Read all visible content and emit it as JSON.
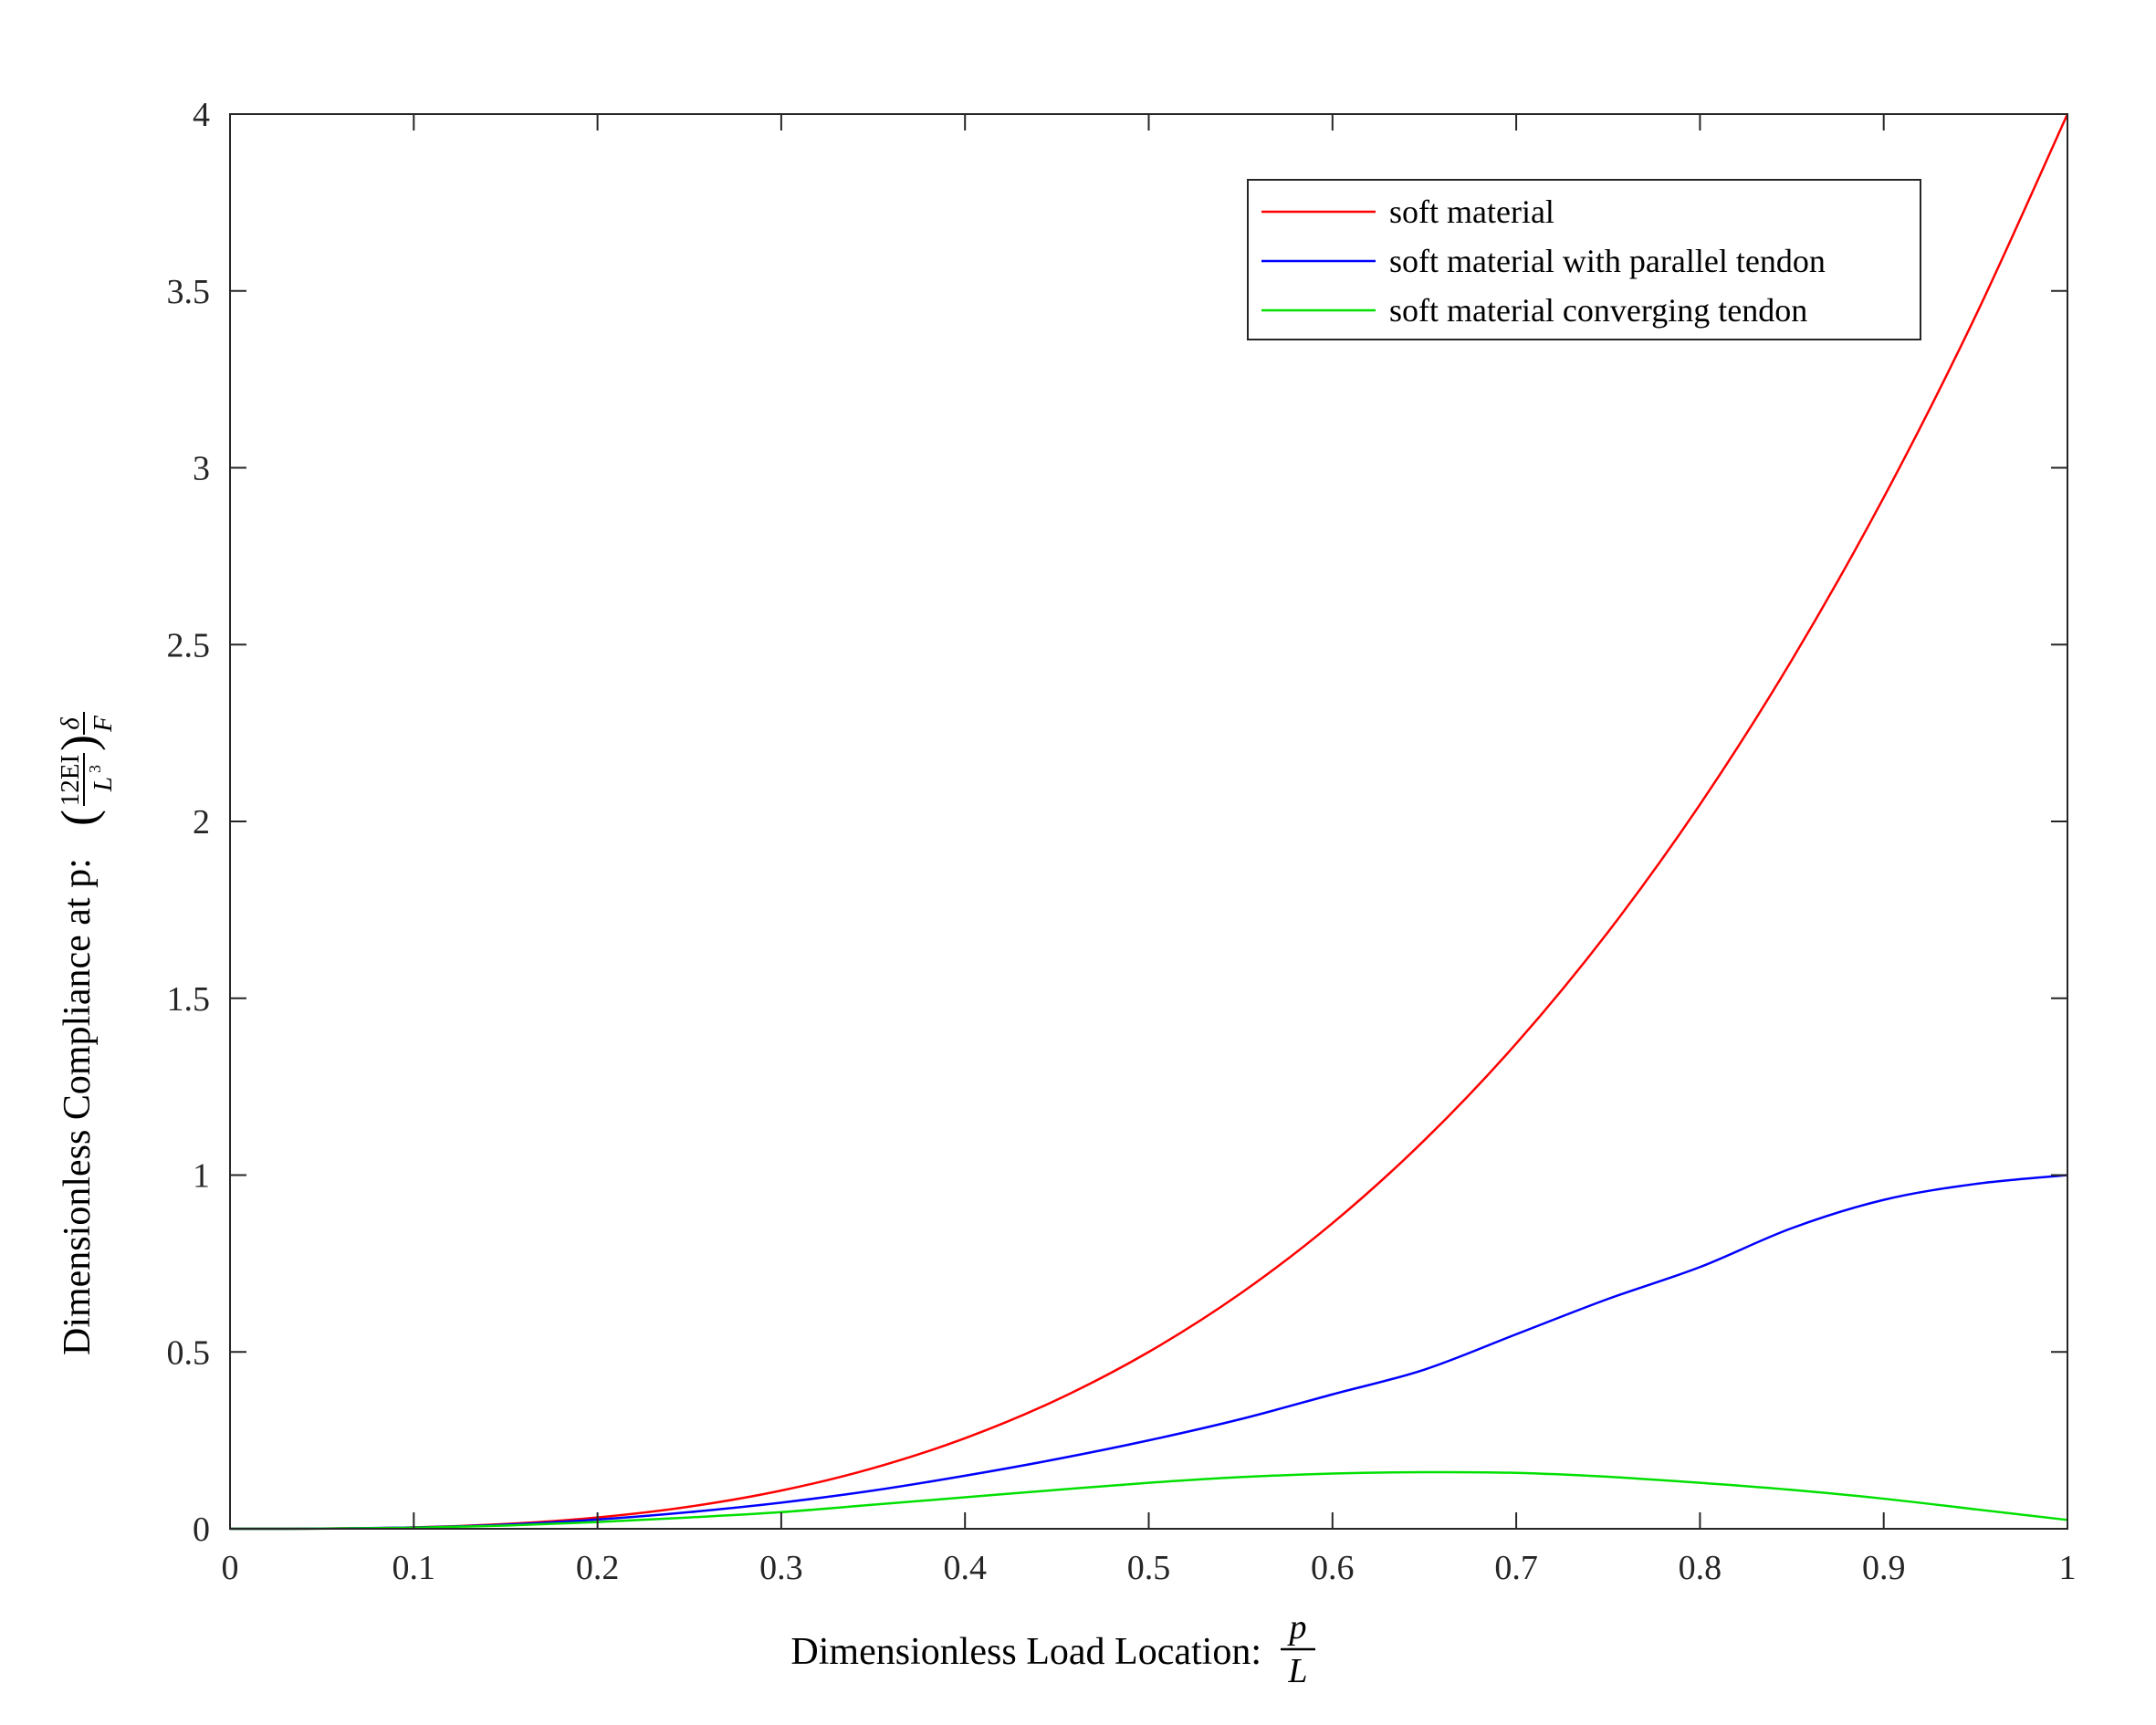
{
  "chart_data": {
    "type": "line",
    "xlabel": "Dimensionless Load Location:",
    "xlabel_math": {
      "numerator": "p",
      "denominator": "L"
    },
    "ylabel": "Dimensionless Compliance at p:",
    "ylabel_math": {
      "num": "12EI",
      "den": "L",
      "den_exp": "3",
      "delta": "δ",
      "F": "F"
    },
    "xlim": [
      0,
      1
    ],
    "ylim": [
      0,
      4
    ],
    "xticks": [
      0,
      0.1,
      0.2,
      0.3,
      0.4,
      0.5,
      0.6,
      0.7,
      0.8,
      0.9,
      1
    ],
    "xtick_labels": [
      "0",
      "0.1",
      "0.2",
      "0.3",
      "0.4",
      "0.5",
      "0.6",
      "0.7",
      "0.8",
      "0.9",
      "1"
    ],
    "yticks": [
      0,
      0.5,
      1,
      1.5,
      2,
      2.5,
      3,
      3.5,
      4
    ],
    "ytick_labels": [
      "0",
      "0.5",
      "1",
      "1.5",
      "2",
      "2.5",
      "3",
      "3.5",
      "4"
    ],
    "grid": false,
    "legend_position": "top-right",
    "x": [
      0,
      0.05,
      0.1,
      0.15,
      0.2,
      0.25,
      0.3,
      0.35,
      0.4,
      0.45,
      0.5,
      0.55,
      0.6,
      0.65,
      0.7,
      0.75,
      0.8,
      0.85,
      0.9,
      0.95,
      1
    ],
    "series": [
      {
        "name": "soft material",
        "color": "#ff0000",
        "values": [
          0,
          0.0005,
          0.004,
          0.0135,
          0.032,
          0.0625,
          0.108,
          0.1715,
          0.256,
          0.3645,
          0.5,
          0.6655,
          0.864,
          1.0985,
          1.372,
          1.6875,
          2.048,
          2.4565,
          2.916,
          3.4295,
          4.0
        ]
      },
      {
        "name": "soft material with parallel tendon",
        "color": "#0000ff",
        "values": [
          0,
          0.0005,
          0.0036,
          0.0115,
          0.026,
          0.047,
          0.074,
          0.108,
          0.15,
          0.197,
          0.25,
          0.31,
          0.38,
          0.45,
          0.55,
          0.65,
          0.74,
          0.85,
          0.93,
          0.975,
          1.0
        ]
      },
      {
        "name": "soft material converging tendon",
        "color": "#00e000",
        "values": [
          0,
          0.0004,
          0.003,
          0.009,
          0.019,
          0.032,
          0.047,
          0.068,
          0.089,
          0.11,
          0.13,
          0.146,
          0.156,
          0.16,
          0.158,
          0.147,
          0.13,
          0.11,
          0.085,
          0.055,
          0.025
        ]
      }
    ]
  }
}
